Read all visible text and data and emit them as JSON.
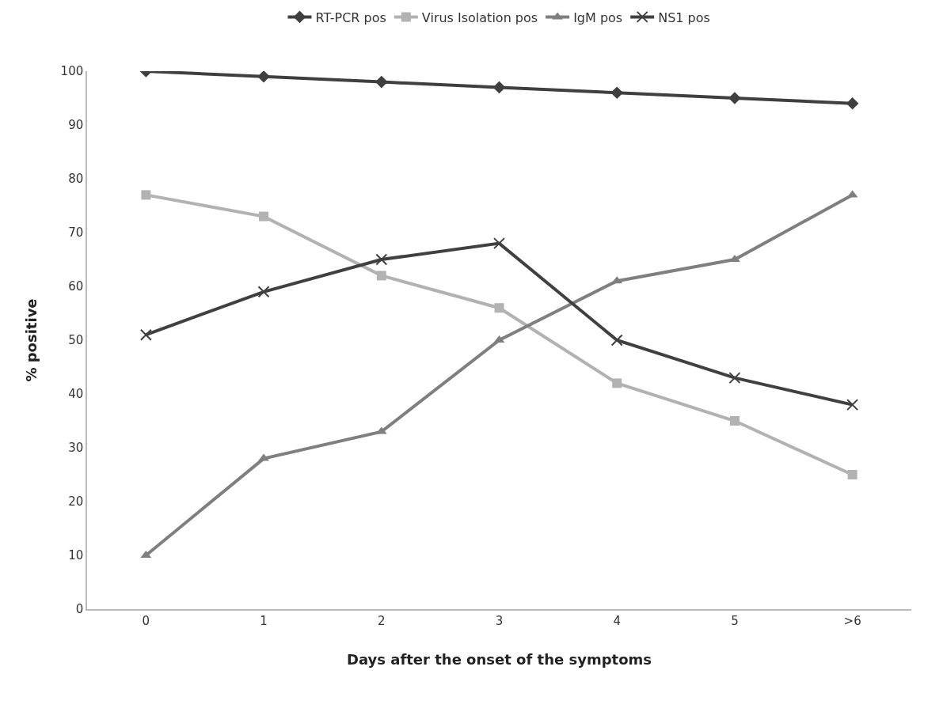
{
  "chart_data": {
    "type": "line",
    "xlabel": "Days after the onset of the symptoms",
    "ylabel": "% positive",
    "categories": [
      "0",
      "1",
      "2",
      "3",
      "4",
      "5",
      ">6"
    ],
    "series": [
      {
        "name": "RT-PCR pos",
        "color": "#3f3f3f",
        "marker": "diamond",
        "values": [
          100,
          99,
          98,
          97,
          96,
          95,
          94
        ]
      },
      {
        "name": "Virus Isolation pos",
        "color": "#b2b2b2",
        "marker": "square",
        "values": [
          77,
          73,
          62,
          56,
          42,
          35,
          25
        ]
      },
      {
        "name": "IgM pos",
        "color": "#7f7f7f",
        "marker": "triangle",
        "values": [
          10,
          28,
          33,
          50,
          61,
          65,
          77
        ]
      },
      {
        "name": "NS1 pos",
        "color": "#404040",
        "marker": "cross",
        "values": [
          51,
          59,
          65,
          68,
          50,
          43,
          38
        ]
      }
    ],
    "ylim": [
      0,
      100
    ],
    "yticks": [
      0,
      10,
      20,
      30,
      40,
      50,
      60,
      70,
      80,
      90,
      100
    ],
    "grid": false,
    "legend": "top",
    "line_style": "solid"
  }
}
